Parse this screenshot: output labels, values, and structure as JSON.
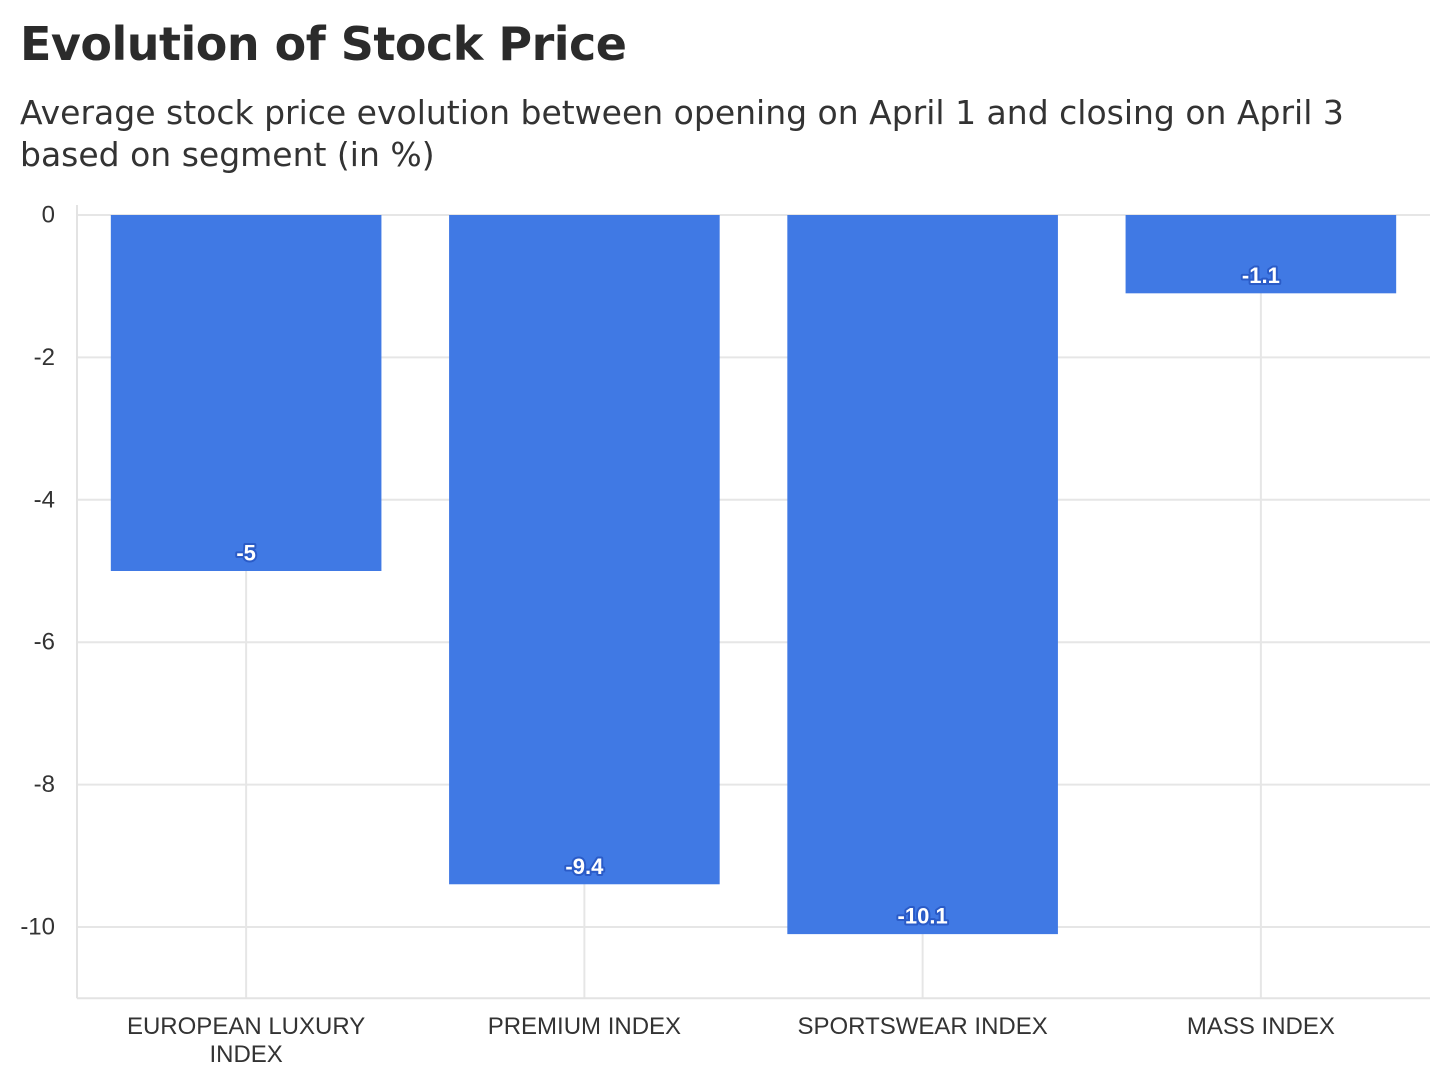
{
  "chart_data": {
    "type": "bar",
    "title": "Evolution of Stock Price",
    "subtitle": "Average stock price evolution between opening on April 1 and closing on April 3 based on segment (in %)",
    "xlabel": "",
    "ylabel": "",
    "categories": [
      [
        "EUROPEAN LUXURY",
        "INDEX"
      ],
      [
        "PREMIUM INDEX"
      ],
      [
        "SPORTSWEAR INDEX"
      ],
      [
        "MASS INDEX"
      ]
    ],
    "values": [
      -5,
      -9.4,
      -10.1,
      -1.1
    ],
    "data_labels": [
      "-5",
      "-9.4",
      "-10.1",
      "-1.1"
    ],
    "y_ticks": [
      0,
      -2,
      -4,
      -6,
      -8,
      -10
    ],
    "y_tick_labels": [
      "0",
      "-2",
      "-4",
      "-6",
      "-8",
      "-10"
    ],
    "ylim": [
      -11,
      0
    ],
    "grid": true,
    "legend": "none",
    "colors": {
      "bar": "#4079e4",
      "label_text": "#ffffff",
      "label_halo": "#2a5bc7",
      "grid": "#e6e6e6",
      "axis_text": "#333333"
    }
  }
}
